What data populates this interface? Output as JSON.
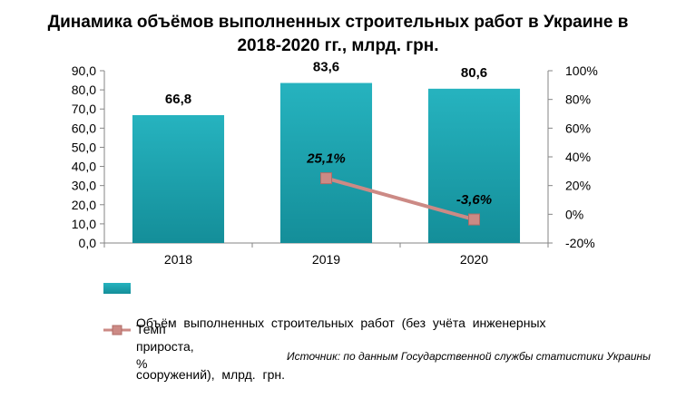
{
  "title_line1": "Динамика объёмов выполненных строительных работ в Украине в",
  "title_line2": "2018-2020 гг., млрд. грн.",
  "chart_data": {
    "type": "bar",
    "categories": [
      "2018",
      "2019",
      "2020"
    ],
    "series": [
      {
        "name": "Объём выполненных строительных работ (без учёта инженерных сооружений), млрд. грн.",
        "type": "bar",
        "axis": "left",
        "values": [
          66.8,
          83.6,
          80.6
        ],
        "labels": [
          "66,8",
          "83,6",
          "80,6"
        ],
        "color": "#1ba6b2"
      },
      {
        "name": "Темп прироста, %",
        "type": "line",
        "axis": "right",
        "x": [
          "2019",
          "2020"
        ],
        "values": [
          25.1,
          -3.6
        ],
        "labels": [
          "25,1%",
          "-3,6%"
        ],
        "color": "#cc8a85"
      }
    ],
    "y_left": {
      "min": 0,
      "max": 90,
      "step": 10,
      "ticks": [
        "0,0",
        "10,0",
        "20,0",
        "30,0",
        "40,0",
        "50,0",
        "60,0",
        "70,0",
        "80,0",
        "90,0"
      ]
    },
    "y_right": {
      "min": -20,
      "max": 100,
      "step": 20,
      "ticks": [
        "-20%",
        "0%",
        "20%",
        "40%",
        "60%",
        "80%",
        "100%"
      ]
    },
    "grid": false,
    "legend_position": "bottom"
  },
  "legend": {
    "bar_line1": "Объём  выполненных  строительных  работ  (без  учёта  инженерных",
    "bar_line2": "сооружений),  млрд.  грн.",
    "line_label": "Темп прироста, %"
  },
  "source": "Источник: по данным Государственной службы статистики Украины"
}
